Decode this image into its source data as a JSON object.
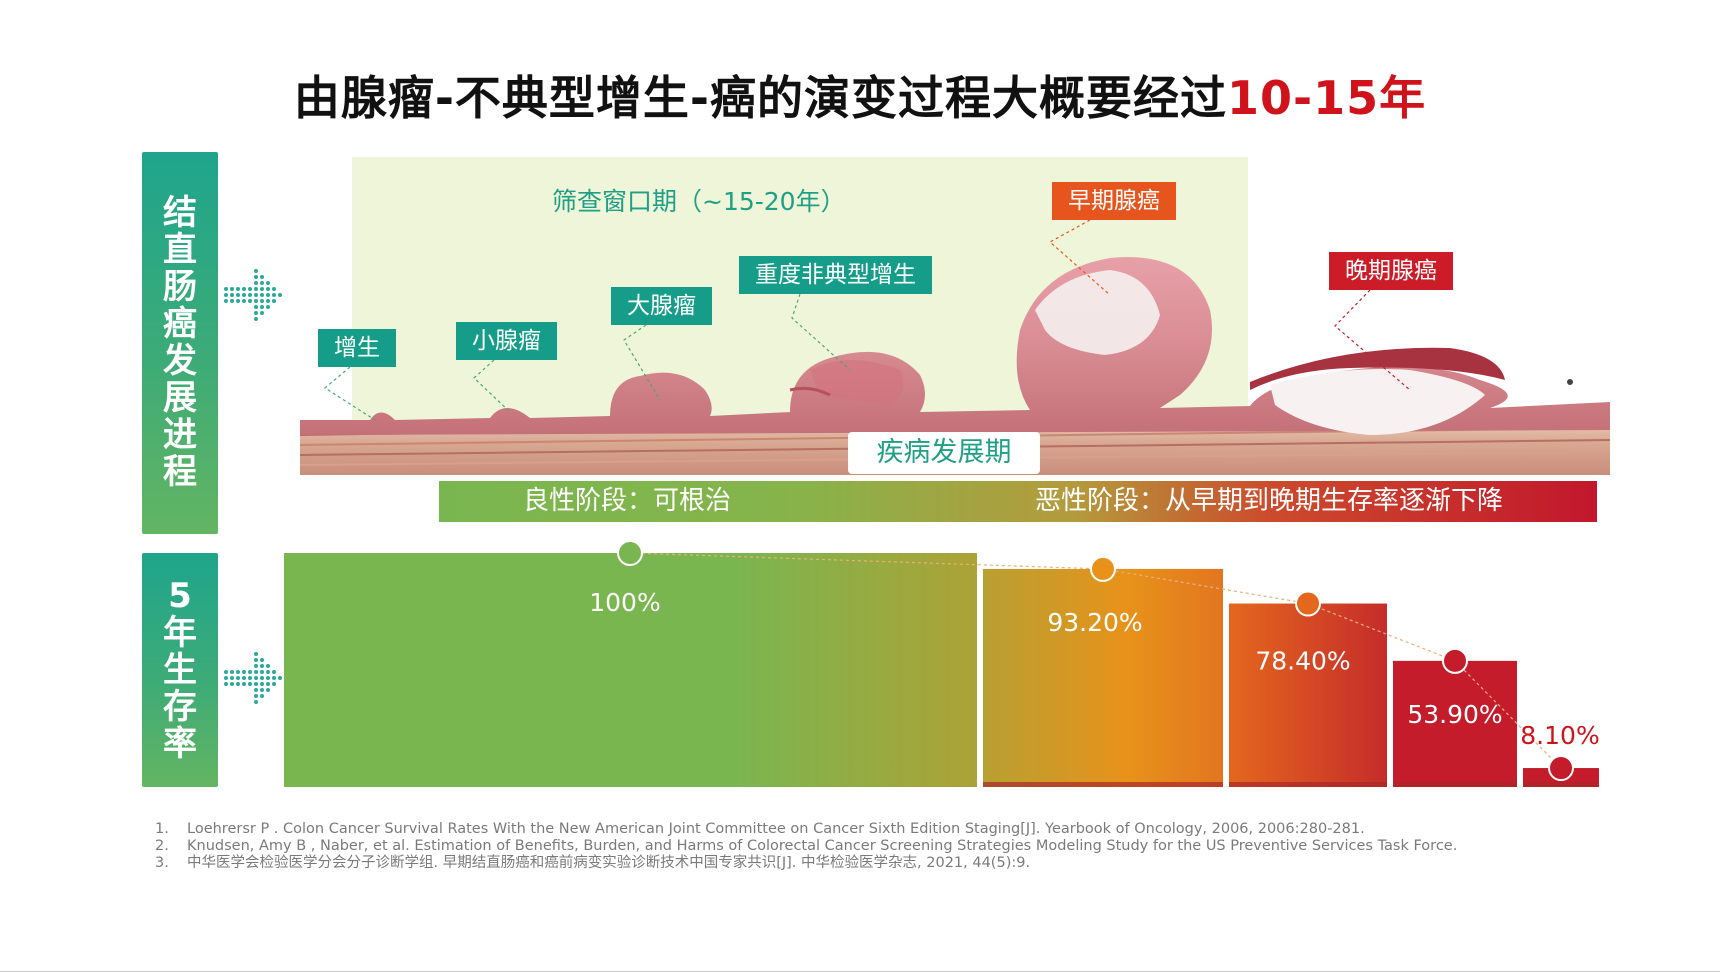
{
  "title": {
    "main": "由腺瘤-不典型增生-癌的演变过程大概要经过",
    "highlight": "10-15年"
  },
  "side_panels": {
    "progress": "结直肠癌发展进程",
    "survival": "5年生存率"
  },
  "screening_window": "筛查窗口期（~15-20年）",
  "stages": [
    "增生",
    "小腺瘤",
    "大腺瘤",
    "重度非典型增生",
    "早期腺癌",
    "晚期腺癌"
  ],
  "disease_period": "疾病发展期",
  "phases": {
    "benign": "良性阶段：可根治",
    "malignant": "恶性阶段：从早期到晚期生存率逐渐下降"
  },
  "colors": {
    "title_highlight": "#d0121b",
    "teal": "#159d8a",
    "red": "#cc1c28",
    "orange": "#e6551e"
  },
  "icons": {
    "arrow": "dotted-right-arrow-icon"
  },
  "chart_data": {
    "type": "bar",
    "categories": [
      "",
      "",
      "",
      "",
      ""
    ],
    "values": [
      100,
      93.2,
      78.4,
      53.9,
      8.1
    ],
    "value_labels": [
      "100%",
      "93.20%",
      "78.40%",
      "53.90%",
      "8.10%"
    ],
    "ylim": [
      0,
      100
    ],
    "grid": false,
    "legend": "none",
    "trend_line": true,
    "bar_colors": [
      "gradient-green-olive",
      "gradient-olive-orange",
      "gradient-orange-red",
      "#c41c2b",
      "#c41c2b"
    ]
  },
  "references": [
    {
      "num": "1.",
      "text": "Loehrersr P . Colon Cancer Survival Rates With the New American Joint Committee on Cancer Sixth Edition Staging[J]. Yearbook of Oncology, 2006, 2006:280-281."
    },
    {
      "num": "2.",
      "text": "Knudsen,  Amy B , Naber, et al. Estimation of Benefits, Burden, and Harms of Colorectal Cancer Screening Strategies Modeling Study for the US Preventive Services Task Force."
    },
    {
      "num": "3.",
      "text": "中华医学会检验医学分会分子诊断学组. 早期结直肠癌和癌前病变实验诊断技术中国专家共识[J]. 中华检验医学杂志, 2021, 44(5):9."
    }
  ]
}
